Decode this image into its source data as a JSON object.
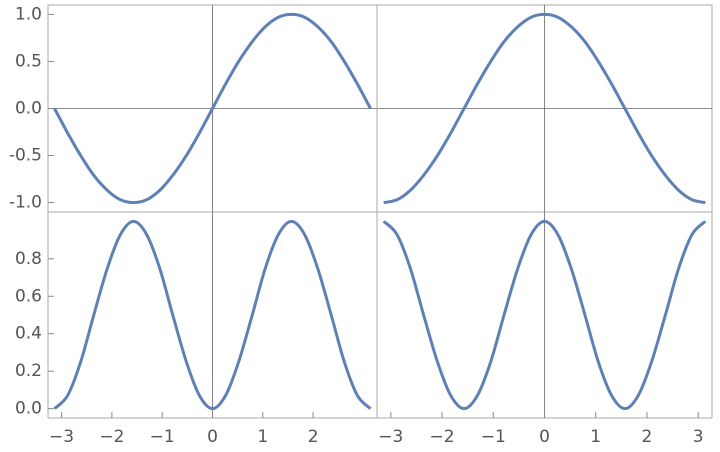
{
  "chart_data": [
    {
      "type": "line",
      "x": [
        -3.14,
        -2.88,
        -2.62,
        -2.36,
        -2.09,
        -1.83,
        -1.57,
        -1.31,
        -1.05,
        -0.79,
        -0.52,
        -0.26,
        0,
        0.26,
        0.52,
        0.79,
        1.05,
        1.31,
        1.57,
        1.83,
        2.09,
        2.36,
        2.62,
        2.88,
        3.14
      ],
      "series": [
        {
          "color": "#5e81b5",
          "values": [
            0,
            -0.26,
            -0.5,
            -0.71,
            -0.87,
            -0.97,
            -1,
            -0.97,
            -0.87,
            -0.71,
            -0.5,
            -0.26,
            0,
            0.26,
            0.5,
            0.71,
            0.87,
            0.97,
            1,
            0.97,
            0.87,
            0.71,
            0.5,
            0.26,
            0
          ]
        }
      ],
      "xlim": [
        -3.27,
        3.27
      ],
      "ylim": [
        -1.1,
        1.1
      ],
      "yticks": [
        {
          "value": -1,
          "label": "-1.0"
        },
        {
          "value": -0.5,
          "label": "-0.5"
        },
        {
          "value": 0,
          "label": "0.0"
        },
        {
          "value": 0.5,
          "label": "0.5"
        },
        {
          "value": 1,
          "label": "1.0"
        }
      ]
    },
    {
      "type": "line",
      "x": [
        -3.14,
        -2.88,
        -2.62,
        -2.36,
        -2.09,
        -1.83,
        -1.57,
        -1.31,
        -1.05,
        -0.79,
        -0.52,
        -0.26,
        0,
        0.26,
        0.52,
        0.79,
        1.05,
        1.31,
        1.57,
        1.83,
        2.09,
        2.36,
        2.62,
        2.88,
        3.14
      ],
      "series": [
        {
          "color": "#5e81b5",
          "values": [
            -1,
            -0.97,
            -0.87,
            -0.71,
            -0.5,
            -0.26,
            0,
            0.26,
            0.5,
            0.71,
            0.87,
            0.97,
            1,
            0.97,
            0.87,
            0.71,
            0.5,
            0.26,
            0,
            -0.26,
            -0.5,
            -0.71,
            -0.87,
            -0.97,
            -1
          ]
        }
      ],
      "xlim": [
        -3.27,
        3.27
      ],
      "ylim": [
        -1.1,
        1.1
      ]
    },
    {
      "type": "line",
      "x": [
        -3.14,
        -2.88,
        -2.62,
        -2.36,
        -2.09,
        -1.83,
        -1.57,
        -1.31,
        -1.05,
        -0.79,
        -0.52,
        -0.26,
        0,
        0.26,
        0.52,
        0.79,
        1.05,
        1.31,
        1.57,
        1.83,
        2.09,
        2.36,
        2.62,
        2.88,
        3.14
      ],
      "series": [
        {
          "color": "#5e81b5",
          "values": [
            0,
            0.07,
            0.25,
            0.5,
            0.75,
            0.93,
            1,
            0.93,
            0.75,
            0.5,
            0.25,
            0.07,
            0,
            0.07,
            0.25,
            0.5,
            0.75,
            0.93,
            1,
            0.93,
            0.75,
            0.5,
            0.25,
            0.07,
            0
          ]
        }
      ],
      "xlim": [
        -3.27,
        3.27
      ],
      "ylim": [
        -0.05,
        1.05
      ],
      "xticks": [
        {
          "value": -3,
          "label": "−3"
        },
        {
          "value": -2,
          "label": "−2"
        },
        {
          "value": -1,
          "label": "−1"
        },
        0,
        1,
        2
      ],
      "yticks": [
        {
          "value": 0,
          "label": "0.0"
        },
        {
          "value": 0.2,
          "label": "0.2"
        },
        {
          "value": 0.4,
          "label": "0.4"
        },
        {
          "value": 0.6,
          "label": "0.6"
        },
        {
          "value": 0.8,
          "label": "0.8"
        }
      ]
    },
    {
      "type": "line",
      "x": [
        -3.14,
        -2.88,
        -2.62,
        -2.36,
        -2.09,
        -1.83,
        -1.57,
        -1.31,
        -1.05,
        -0.79,
        -0.52,
        -0.26,
        0,
        0.26,
        0.52,
        0.79,
        1.05,
        1.31,
        1.57,
        1.83,
        2.09,
        2.36,
        2.62,
        2.88,
        3.14
      ],
      "series": [
        {
          "color": "#5e81b5",
          "values": [
            1,
            0.93,
            0.75,
            0.5,
            0.25,
            0.07,
            0,
            0.07,
            0.25,
            0.5,
            0.75,
            0.93,
            1,
            0.93,
            0.75,
            0.5,
            0.25,
            0.07,
            0,
            0.07,
            0.25,
            0.5,
            0.75,
            0.93,
            1
          ]
        }
      ],
      "xlim": [
        -3.27,
        3.27
      ],
      "ylim": [
        -0.05,
        1.05
      ],
      "xticks": [
        {
          "value": -3,
          "label": "−3"
        },
        {
          "value": -2,
          "label": "−2"
        },
        {
          "value": -1,
          "label": "−1"
        },
        0,
        1,
        2,
        3
      ]
    }
  ]
}
